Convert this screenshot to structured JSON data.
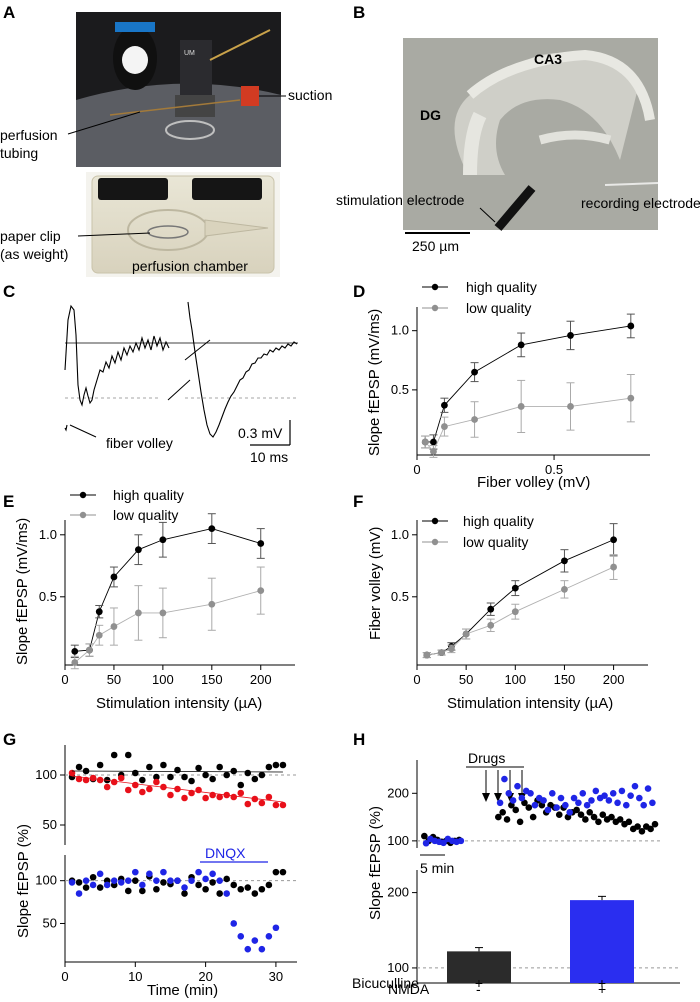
{
  "panel_labels": [
    "A",
    "B",
    "C",
    "D",
    "E",
    "F",
    "G",
    "H"
  ],
  "panel_a": {
    "labels": {
      "suction": "suction",
      "perfusion_tubing_1": "perfusion",
      "perfusion_tubing_2": "tubing",
      "paper_clip_1": "paper clip",
      "paper_clip_2": "(as weight)",
      "chamber": "perfusion chamber"
    }
  },
  "panel_b": {
    "labels": {
      "ca3": "CA3",
      "dg": "DG",
      "stim": "stimulation electrode",
      "rec": "recording electrode",
      "scale": "250 µm"
    }
  },
  "panel_c": {
    "labels": {
      "fiber_volley": "fiber volley",
      "scale_mv": "0.3 mV",
      "scale_ms": "10 ms"
    }
  },
  "legend": {
    "high": "high quality",
    "low": "low quality"
  },
  "colors": {
    "high": "#000000",
    "low": "#909090",
    "red": "#e8101a",
    "blue": "#1f25e6",
    "bar_black": "#2b2b2b",
    "bar_blue": "#2a2ef0"
  },
  "chart_data": [
    {
      "panel": "D",
      "type": "scatter",
      "xlabel": "Fiber volley (mV)",
      "ylabel": "Slope fEPSP (mV/ms)",
      "xlim": [
        0,
        0.85
      ],
      "ylim": [
        -0.05,
        1.2
      ],
      "xticks": [
        "0",
        "0.5"
      ],
      "yticks": [
        "0.5",
        "1.0"
      ],
      "series": [
        {
          "name": "high quality",
          "x": [
            0.03,
            0.06,
            0.1,
            0.21,
            0.38,
            0.56,
            0.78
          ],
          "y": [
            0.06,
            0.06,
            0.37,
            0.65,
            0.88,
            0.96,
            1.04
          ],
          "err": [
            0.05,
            0.06,
            0.06,
            0.08,
            0.1,
            0.12,
            0.1
          ]
        },
        {
          "name": "low quality",
          "x": [
            0.03,
            0.06,
            0.1,
            0.21,
            0.38,
            0.56,
            0.78
          ],
          "y": [
            0.06,
            -0.02,
            0.19,
            0.25,
            0.36,
            0.36,
            0.43
          ],
          "err": [
            0.05,
            0.05,
            0.08,
            0.15,
            0.22,
            0.2,
            0.2
          ]
        }
      ]
    },
    {
      "panel": "E",
      "type": "line",
      "xlabel": "Stimulation intensity (µA)",
      "ylabel": "Slope fEPSP (mV/ms)",
      "xlim": [
        0,
        235
      ],
      "ylim": [
        -0.05,
        1.2
      ],
      "xticks": [
        "0",
        "50",
        "100",
        "150",
        "200"
      ],
      "yticks": [
        "0.5",
        "1.0"
      ],
      "series": [
        {
          "name": "high quality",
          "x": [
            10,
            25,
            35,
            50,
            75,
            100,
            150,
            200
          ],
          "y": [
            0.06,
            0.07,
            0.38,
            0.66,
            0.88,
            0.96,
            1.05,
            0.93
          ],
          "err": [
            0.05,
            0.05,
            0.05,
            0.08,
            0.12,
            0.14,
            0.12,
            0.12
          ]
        },
        {
          "name": "low quality",
          "x": [
            10,
            25,
            35,
            50,
            75,
            100,
            150,
            200
          ],
          "y": [
            -0.03,
            0.07,
            0.19,
            0.26,
            0.37,
            0.37,
            0.44,
            0.55
          ],
          "err": [
            0.05,
            0.05,
            0.08,
            0.15,
            0.22,
            0.2,
            0.21,
            0.19
          ]
        }
      ]
    },
    {
      "panel": "F",
      "type": "line",
      "xlabel": "Stimulation intensity (µA)",
      "ylabel": "Fiber volley (mV)",
      "xlim": [
        0,
        235
      ],
      "ylim": [
        -0.05,
        1.2
      ],
      "xticks": [
        "0",
        "50",
        "100",
        "150",
        "200"
      ],
      "yticks": [
        "0.5",
        "1.0"
      ],
      "series": [
        {
          "name": "high quality",
          "x": [
            10,
            25,
            35,
            50,
            75,
            100,
            150,
            200
          ],
          "y": [
            0.03,
            0.05,
            0.1,
            0.2,
            0.4,
            0.57,
            0.79,
            0.96
          ],
          "err": [
            0.02,
            0.02,
            0.03,
            0.04,
            0.05,
            0.06,
            0.09,
            0.13
          ]
        },
        {
          "name": "low quality",
          "x": [
            10,
            25,
            35,
            50,
            75,
            100,
            150,
            200
          ],
          "y": [
            0.03,
            0.05,
            0.08,
            0.2,
            0.27,
            0.38,
            0.56,
            0.74
          ],
          "err": [
            0.02,
            0.02,
            0.03,
            0.04,
            0.05,
            0.06,
            0.07,
            0.1
          ]
        }
      ]
    },
    {
      "panel": "G-top",
      "type": "scatter",
      "xlim": [
        0,
        33
      ],
      "ylim": [
        30,
        130
      ],
      "yticks": [
        "50",
        "100"
      ],
      "series": [
        {
          "name": "black",
          "x": [
            1,
            2,
            3,
            4,
            5,
            6,
            7,
            8,
            9,
            10,
            11,
            12,
            13,
            14,
            15,
            16,
            17,
            18,
            19,
            20,
            21,
            22,
            23,
            24,
            25,
            26,
            27,
            28,
            29,
            30,
            31
          ],
          "y": [
            98,
            108,
            104,
            96,
            110,
            95,
            120,
            100,
            120,
            102,
            95,
            108,
            98,
            110,
            98,
            105,
            98,
            94,
            107,
            100,
            96,
            108,
            100,
            104,
            90,
            102,
            96,
            100,
            108,
            110,
            110
          ]
        },
        {
          "name": "red",
          "x": [
            1,
            2,
            3,
            4,
            5,
            6,
            7,
            8,
            9,
            10,
            11,
            12,
            13,
            14,
            15,
            16,
            17,
            18,
            19,
            20,
            21,
            22,
            23,
            24,
            25,
            26,
            27,
            28,
            29,
            30,
            31
          ],
          "y": [
            102,
            96,
            95,
            97,
            95,
            88,
            93,
            97,
            85,
            90,
            83,
            86,
            93,
            88,
            80,
            86,
            77,
            82,
            85,
            77,
            80,
            78,
            80,
            78,
            82,
            71,
            76,
            72,
            78,
            70,
            70
          ]
        }
      ]
    },
    {
      "panel": "G-bottom",
      "type": "scatter",
      "xlabel": "Time (min)",
      "ylabel": "Slope fEPSP (%)",
      "annotation": "DNQX",
      "xlim": [
        0,
        33
      ],
      "ylim": [
        5,
        130
      ],
      "xticks": [
        "0",
        "10",
        "20",
        "30"
      ],
      "yticks": [
        "50",
        "100"
      ],
      "series": [
        {
          "name": "black",
          "x": [
            1,
            2,
            3,
            4,
            5,
            6,
            7,
            8,
            9,
            10,
            11,
            12,
            13,
            14,
            15,
            16,
            17,
            18,
            19,
            20,
            21,
            22,
            23,
            24,
            25,
            26,
            27,
            28,
            29,
            30,
            31
          ],
          "y": [
            100,
            98,
            92,
            104,
            92,
            100,
            95,
            102,
            88,
            100,
            88,
            105,
            90,
            98,
            96,
            100,
            85,
            104,
            95,
            90,
            98,
            85,
            102,
            95,
            90,
            92,
            85,
            90,
            95,
            110,
            110
          ]
        },
        {
          "name": "blue",
          "x": [
            1,
            2,
            3,
            4,
            5,
            6,
            7,
            8,
            9,
            10,
            11,
            12,
            13,
            14,
            15,
            16,
            17,
            18,
            19,
            20,
            21,
            22,
            23,
            24,
            25,
            26,
            27,
            28,
            29,
            30
          ],
          "y": [
            98,
            85,
            100,
            95,
            108,
            95,
            100,
            98,
            100,
            110,
            95,
            108,
            100,
            110,
            100,
            100,
            92,
            100,
            110,
            102,
            108,
            100,
            85,
            50,
            35,
            20,
            30,
            20,
            35,
            45
          ]
        }
      ]
    },
    {
      "panel": "H-top",
      "type": "scatter",
      "ylabel": "Slope fEPSP (%)",
      "annotation": "Drugs",
      "scale": "5 min",
      "ylim": [
        85,
        270
      ],
      "yticks": [
        "100",
        "200"
      ],
      "series": [
        {
          "name": "black",
          "x": [
            0.5,
            1,
            1.5,
            2,
            2.5,
            3,
            3.5,
            4,
            4.5,
            9,
            9.5,
            10,
            10.5,
            11,
            11.5,
            12,
            12.5,
            13,
            13.5,
            14,
            14.5,
            15,
            15.5,
            16,
            16.5,
            17,
            17.5,
            18,
            18.5,
            19,
            19.5,
            20,
            20.5,
            21,
            21.5,
            22,
            22.5,
            23,
            23.5,
            24,
            24.5,
            25,
            25.5,
            26,
            26.5,
            27
          ],
          "y": [
            110,
            100,
            108,
            102,
            98,
            100,
            96,
            100,
            102,
            150,
            160,
            145,
            175,
            165,
            140,
            180,
            170,
            150,
            185,
            175,
            160,
            175,
            170,
            155,
            170,
            150,
            160,
            165,
            155,
            145,
            160,
            150,
            140,
            155,
            145,
            150,
            140,
            145,
            135,
            140,
            125,
            130,
            120,
            130,
            125,
            135
          ]
        },
        {
          "name": "blue",
          "x": [
            0.7,
            1.2,
            1.7,
            2.2,
            2.7,
            3.2,
            3.7,
            4.2,
            4.7,
            9.2,
            9.7,
            10.2,
            10.7,
            11.2,
            11.7,
            12.2,
            12.7,
            13.2,
            13.7,
            14.2,
            14.7,
            15.2,
            15.7,
            16.2,
            16.7,
            17.2,
            17.7,
            18.2,
            18.7,
            19.2,
            19.7,
            20.2,
            20.7,
            21.2,
            21.7,
            22.2,
            22.7,
            23.2,
            23.7,
            24.2,
            24.7,
            25.2,
            25.7,
            26.2,
            26.7
          ],
          "y": [
            95,
            104,
            100,
            98,
            96,
            104,
            100,
            98,
            100,
            180,
            230,
            200,
            185,
            215,
            190,
            205,
            200,
            175,
            190,
            185,
            165,
            200,
            170,
            190,
            175,
            160,
            190,
            180,
            200,
            175,
            185,
            205,
            190,
            195,
            185,
            200,
            180,
            205,
            175,
            195,
            215,
            190,
            175,
            210,
            180
          ]
        }
      ]
    },
    {
      "panel": "H-bottom",
      "type": "bar",
      "ylabel": "Slope fEPSP (%)",
      "ylim": [
        80,
        230
      ],
      "yticks": [
        "100",
        "200"
      ],
      "categories": [
        "Bicuculline + / NMDA -",
        "Bicuculline + / NMDA +"
      ],
      "values": [
        122,
        190
      ],
      "err": [
        5,
        5
      ],
      "row_labels": {
        "bicuculline": "Bicuculline",
        "nmda": "NMDA"
      },
      "row_values": {
        "bicuculline": [
          "+",
          "+"
        ],
        "nmda": [
          "-",
          "+"
        ]
      }
    }
  ]
}
